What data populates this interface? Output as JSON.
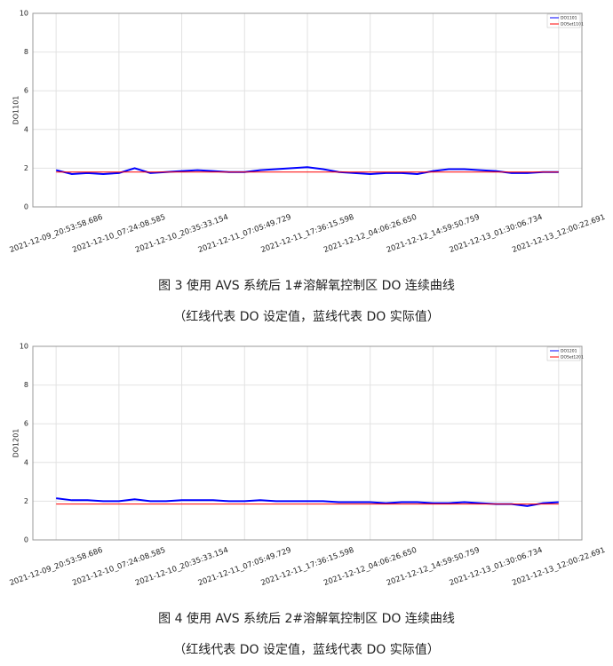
{
  "chart_data": [
    {
      "type": "line",
      "ylabel": "DO1101",
      "x": [
        0,
        0.25,
        0.5,
        0.75,
        1,
        1.25,
        1.5,
        1.75,
        2,
        2.25,
        2.5,
        2.75,
        3,
        3.25,
        3.5,
        3.75,
        4,
        4.25,
        4.5,
        4.75,
        5,
        5.25,
        5.5,
        5.75,
        6,
        6.25,
        6.5,
        6.75,
        7,
        7.25,
        7.5,
        7.75,
        8
      ],
      "xlim": [
        -0.37,
        8.37
      ],
      "xticks": [
        {
          "value": 0,
          "label": "2021-12-09_20:53:58.686"
        },
        {
          "value": 1,
          "label": "2021-12-10_07:24:08.585"
        },
        {
          "value": 2,
          "label": "2021-12-10_20:35:33.154"
        },
        {
          "value": 3,
          "label": "2021-12-11_07:05:49.729"
        },
        {
          "value": 4,
          "label": "2021-12-11_17:36:15.598"
        },
        {
          "value": 5,
          "label": "2021-12-12_04:06:26.650"
        },
        {
          "value": 6,
          "label": "2021-12-12_14:59:50.759"
        },
        {
          "value": 7,
          "label": "2021-12-13_01:30:06.734"
        },
        {
          "value": 8,
          "label": "2021-12-13_12:00:22.691"
        }
      ],
      "ylim": [
        0,
        10
      ],
      "yticks": [
        0,
        2,
        4,
        6,
        8,
        10
      ],
      "grid": true,
      "legend": "upper right",
      "series": [
        {
          "name": "DO1101",
          "color": "#0000ff",
          "values": [
            1.9,
            1.7,
            1.75,
            1.7,
            1.75,
            2.0,
            1.75,
            1.8,
            1.85,
            1.9,
            1.85,
            1.8,
            1.8,
            1.9,
            1.95,
            2.0,
            2.05,
            1.95,
            1.8,
            1.75,
            1.7,
            1.75,
            1.75,
            1.7,
            1.85,
            1.95,
            1.95,
            1.9,
            1.85,
            1.75,
            1.75,
            1.8,
            1.8
          ]
        },
        {
          "name": "DOSet1101",
          "color": "#ff0000",
          "values": [
            1.8,
            1.8,
            1.8,
            1.8,
            1.8,
            1.8,
            1.8,
            1.8,
            1.8,
            1.8,
            1.8,
            1.8,
            1.8,
            1.8,
            1.8,
            1.8,
            1.8,
            1.8,
            1.8,
            1.8,
            1.8,
            1.8,
            1.8,
            1.8,
            1.8,
            1.8,
            1.8,
            1.8,
            1.8,
            1.8,
            1.8,
            1.8,
            1.8
          ]
        }
      ],
      "caption": "图 3  使用 AVS 系统后 1#溶解氧控制区 DO 连续曲线",
      "note": "（红线代表 DO 设定值，蓝线代表 DO 实际值）"
    },
    {
      "type": "line",
      "ylabel": "DO1201",
      "x": [
        0,
        0.25,
        0.5,
        0.75,
        1,
        1.25,
        1.5,
        1.75,
        2,
        2.25,
        2.5,
        2.75,
        3,
        3.25,
        3.5,
        3.75,
        4,
        4.25,
        4.5,
        4.75,
        5,
        5.25,
        5.5,
        5.75,
        6,
        6.25,
        6.5,
        6.75,
        7,
        7.25,
        7.5,
        7.75,
        8
      ],
      "xlim": [
        -0.37,
        8.37
      ],
      "xticks": [
        {
          "value": 0,
          "label": "2021-12-09_20:53:58.686"
        },
        {
          "value": 1,
          "label": "2021-12-10_07:24:08.585"
        },
        {
          "value": 2,
          "label": "2021-12-10_20:35:33.154"
        },
        {
          "value": 3,
          "label": "2021-12-11_07:05:49.729"
        },
        {
          "value": 4,
          "label": "2021-12-11_17:36:15.598"
        },
        {
          "value": 5,
          "label": "2021-12-12_04:06:26.650"
        },
        {
          "value": 6,
          "label": "2021-12-12_14:59:50.759"
        },
        {
          "value": 7,
          "label": "2021-12-13_01:30:06.734"
        },
        {
          "value": 8,
          "label": "2021-12-13_12:00:22.691"
        }
      ],
      "ylim": [
        0,
        10
      ],
      "yticks": [
        0,
        2,
        4,
        6,
        8,
        10
      ],
      "grid": true,
      "legend": "upper right",
      "series": [
        {
          "name": "DO1201",
          "color": "#0000ff",
          "values": [
            2.15,
            2.05,
            2.05,
            2.0,
            2.0,
            2.1,
            2.0,
            2.0,
            2.05,
            2.05,
            2.05,
            2.0,
            2.0,
            2.05,
            2.0,
            2.0,
            2.0,
            2.0,
            1.95,
            1.95,
            1.95,
            1.9,
            1.95,
            1.95,
            1.9,
            1.9,
            1.95,
            1.9,
            1.85,
            1.85,
            1.75,
            1.9,
            1.95
          ]
        },
        {
          "name": "DOSet1201",
          "color": "#ff0000",
          "values": [
            1.85,
            1.85,
            1.85,
            1.85,
            1.85,
            1.85,
            1.85,
            1.85,
            1.85,
            1.85,
            1.85,
            1.85,
            1.85,
            1.85,
            1.85,
            1.85,
            1.85,
            1.85,
            1.85,
            1.85,
            1.85,
            1.85,
            1.85,
            1.85,
            1.85,
            1.85,
            1.85,
            1.85,
            1.85,
            1.85,
            1.85,
            1.85,
            1.85
          ]
        }
      ],
      "caption": "图 4  使用 AVS 系统后 2#溶解氧控制区 DO 连续曲线",
      "note": "（红线代表 DO 设定值，蓝线代表 DO 实际值）"
    }
  ]
}
